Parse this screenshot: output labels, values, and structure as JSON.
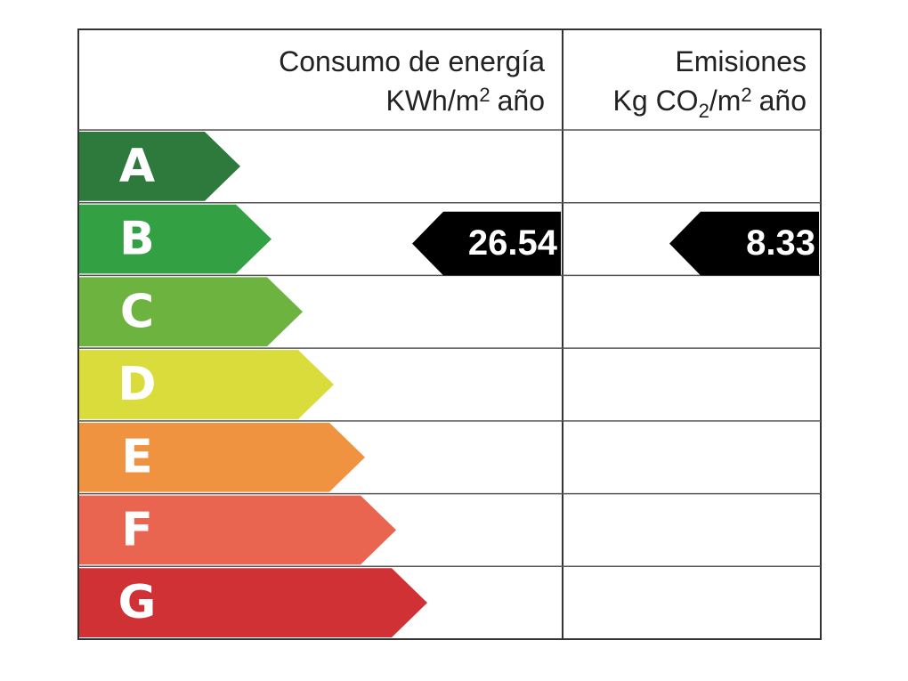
{
  "header": {
    "energy": {
      "title": "Consumo de energía",
      "unit": [
        "KWh/m",
        "2",
        "año"
      ]
    },
    "emissions": {
      "title": "Emisiones",
      "unit": [
        "Kg CO",
        "2",
        "/m",
        "2",
        "año"
      ]
    }
  },
  "classes": [
    {
      "label": "A",
      "color": "#2e7a3c"
    },
    {
      "label": "B",
      "color": "#32a043"
    },
    {
      "label": "C",
      "color": "#6db33f"
    },
    {
      "label": "D",
      "color": "#d9dc3a"
    },
    {
      "label": "E",
      "color": "#ef9340"
    },
    {
      "label": "F",
      "color": "#ea6550"
    },
    {
      "label": "G",
      "color": "#cf3135"
    }
  ],
  "energy": {
    "class": "B",
    "value": "26.54"
  },
  "emissions": {
    "class": "B",
    "value": "8.33"
  }
}
